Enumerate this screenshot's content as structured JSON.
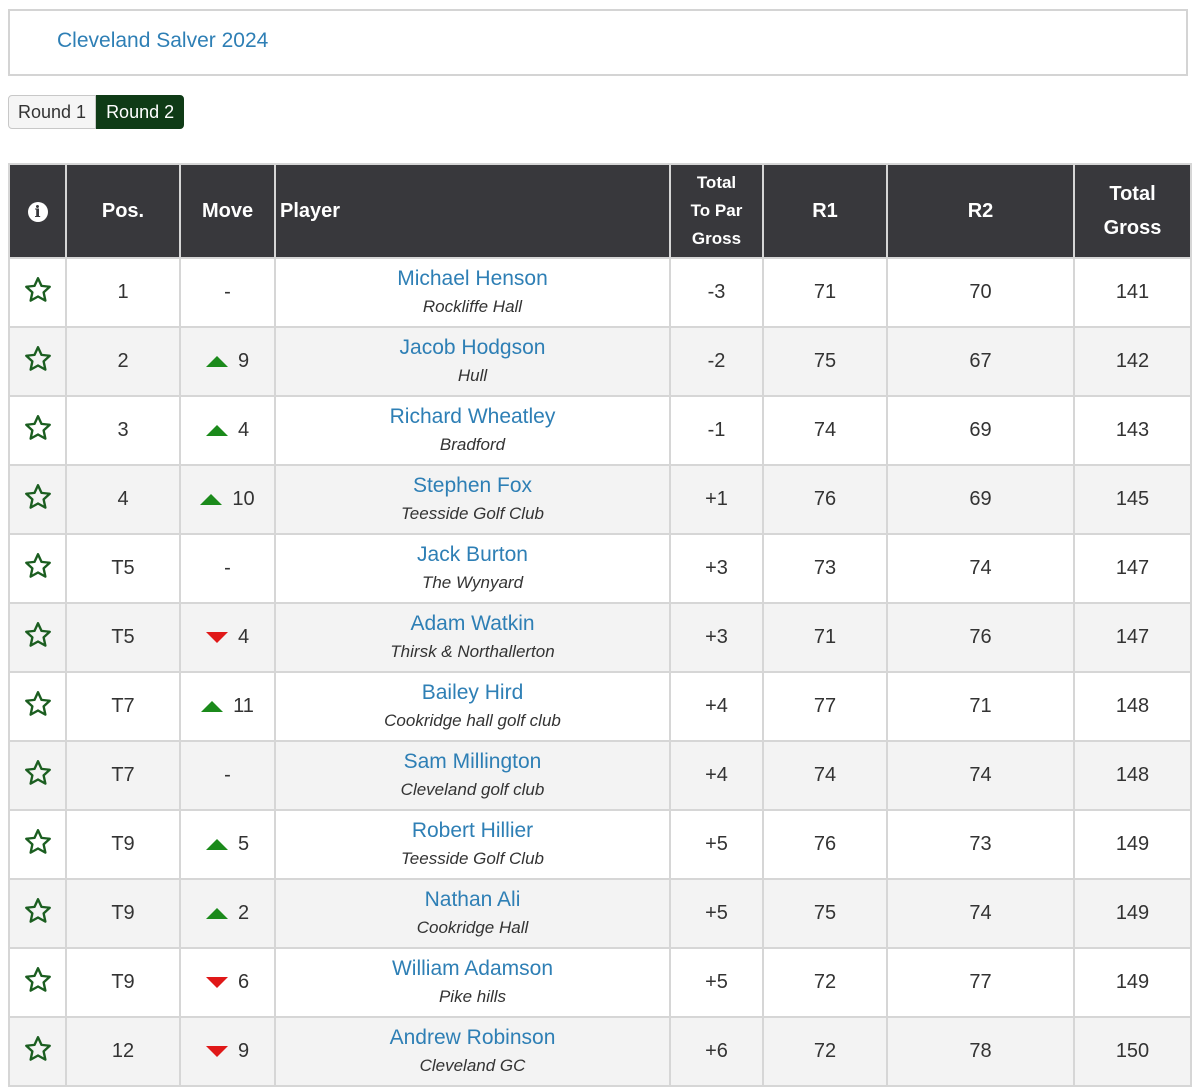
{
  "event": {
    "title": "Cleveland Salver 2024"
  },
  "rounds": {
    "tabs": [
      "Round 1",
      "Round 2"
    ],
    "active": "Round 2"
  },
  "table": {
    "headers": {
      "info": "i",
      "pos": "Pos.",
      "move": "Move",
      "player": "Player",
      "topar_line1": "Total",
      "topar_line2": "To Par",
      "topar_line3": "Gross",
      "r1": "R1",
      "r2": "R2",
      "total_line1": "Total",
      "total_line2": "Gross"
    },
    "colors": {
      "under_par": "#d91212",
      "over_par": "#2020b8",
      "birdie_range": "#1b7c1b",
      "movement_up": "#1b8a1b",
      "movement_down": "#e01818",
      "star_outline": "#1b5e20"
    },
    "rows": [
      {
        "pos": "1",
        "move_dir": "none",
        "move": "-",
        "name": "Michael Henson",
        "club": "Rockliffe Hall",
        "topar": "-3",
        "topar_color": "red",
        "r1": "71",
        "r1_color": "red",
        "r2": "70",
        "r2_color": "red",
        "total": "141"
      },
      {
        "pos": "2",
        "move_dir": "up",
        "move": "9",
        "name": "Jacob Hodgson",
        "club": "Hull",
        "topar": "-2",
        "topar_color": "red",
        "r1": "75",
        "r1_color": "blue",
        "r2": "67",
        "r2_color": "red",
        "total": "142"
      },
      {
        "pos": "3",
        "move_dir": "up",
        "move": "4",
        "name": "Richard Wheatley",
        "club": "Bradford",
        "topar": "-1",
        "topar_color": "red",
        "r1": "74",
        "r1_color": "blue",
        "r2": "69",
        "r2_color": "red",
        "total": "143"
      },
      {
        "pos": "4",
        "move_dir": "up",
        "move": "10",
        "name": "Stephen Fox",
        "club": "Teesside Golf Club",
        "topar": "+1",
        "topar_color": "blue",
        "r1": "76",
        "r1_color": "blue",
        "r2": "69",
        "r2_color": "red",
        "total": "145"
      },
      {
        "pos": "T5",
        "move_dir": "none",
        "move": "-",
        "name": "Jack Burton",
        "club": "The Wynyard",
        "topar": "+3",
        "topar_color": "blue",
        "r1": "73",
        "r1_color": "blue",
        "r2": "74",
        "r2_color": "blue",
        "total": "147"
      },
      {
        "pos": "T5",
        "move_dir": "down",
        "move": "4",
        "name": "Adam Watkin",
        "club": "Thirsk & Northallerton",
        "topar": "+3",
        "topar_color": "blue",
        "r1": "71",
        "r1_color": "red",
        "r2": "76",
        "r2_color": "blue",
        "total": "147"
      },
      {
        "pos": "T7",
        "move_dir": "up",
        "move": "11",
        "name": "Bailey Hird",
        "club": "Cookridge hall golf club",
        "topar": "+4",
        "topar_color": "blue",
        "r1": "77",
        "r1_color": "blue",
        "r2": "71",
        "r2_color": "red",
        "total": "148"
      },
      {
        "pos": "T7",
        "move_dir": "none",
        "move": "-",
        "name": "Sam Millington",
        "club": "Cleveland golf club",
        "topar": "+4",
        "topar_color": "blue",
        "r1": "74",
        "r1_color": "blue",
        "r2": "74",
        "r2_color": "blue",
        "total": "148"
      },
      {
        "pos": "T9",
        "move_dir": "up",
        "move": "5",
        "name": "Robert Hillier",
        "club": "Teesside Golf Club",
        "topar": "+5",
        "topar_color": "blue",
        "r1": "76",
        "r1_color": "blue",
        "r2": "73",
        "r2_color": "blue",
        "total": "149"
      },
      {
        "pos": "T9",
        "move_dir": "up",
        "move": "2",
        "name": "Nathan Ali",
        "club": "Cookridge Hall",
        "topar": "+5",
        "topar_color": "blue",
        "r1": "75",
        "r1_color": "blue",
        "r2": "74",
        "r2_color": "blue",
        "total": "149"
      },
      {
        "pos": "T9",
        "move_dir": "down",
        "move": "6",
        "name": "William Adamson",
        "club": "Pike hills",
        "topar": "+5",
        "topar_color": "blue",
        "r1": "72",
        "r1_color": "green",
        "r2": "77",
        "r2_color": "blue",
        "total": "149"
      },
      {
        "pos": "12",
        "move_dir": "down",
        "move": "9",
        "name": "Andrew Robinson",
        "club": "Cleveland GC",
        "topar": "+6",
        "topar_color": "blue",
        "r1": "72",
        "r1_color": "green",
        "r2": "78",
        "r2_color": "blue",
        "total": "150"
      }
    ]
  }
}
